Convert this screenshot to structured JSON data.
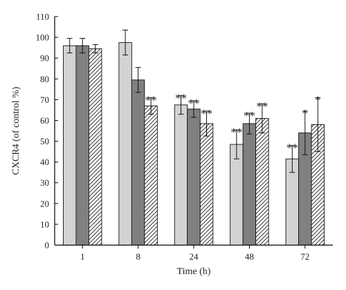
{
  "chart_data": {
    "type": "bar",
    "xlabel": "Time (h)",
    "ylabel": "CXCR4 (of control %)",
    "ylim": [
      0,
      110
    ],
    "yticks": [
      0,
      10,
      20,
      30,
      40,
      50,
      60,
      70,
      80,
      90,
      100,
      110
    ],
    "categories": [
      "1",
      "8",
      "24",
      "48",
      "72"
    ],
    "grid": false,
    "legend": "none",
    "series": [
      {
        "fill": "#d3d3d3",
        "pattern": "solid",
        "values": [
          96,
          97.5,
          67.5,
          48.5,
          41.5
        ],
        "errors": [
          3.5,
          6,
          4.5,
          7,
          6.5
        ],
        "significance": [
          "",
          "",
          "**",
          "**",
          "**"
        ]
      },
      {
        "fill": "#808080",
        "pattern": "solid",
        "values": [
          96,
          79.5,
          65.5,
          58.5,
          54
        ],
        "errors": [
          3.5,
          6,
          4,
          5,
          10.5
        ],
        "significance": [
          "",
          "",
          "**",
          "**",
          "*"
        ]
      },
      {
        "fill": "#ffffff",
        "pattern": "hatched",
        "values": [
          94.5,
          67,
          58.5,
          61,
          58
        ],
        "errors": [
          2,
          4,
          6,
          7,
          13
        ],
        "significance": [
          "",
          "**",
          "**",
          "**",
          "*"
        ]
      }
    ]
  }
}
